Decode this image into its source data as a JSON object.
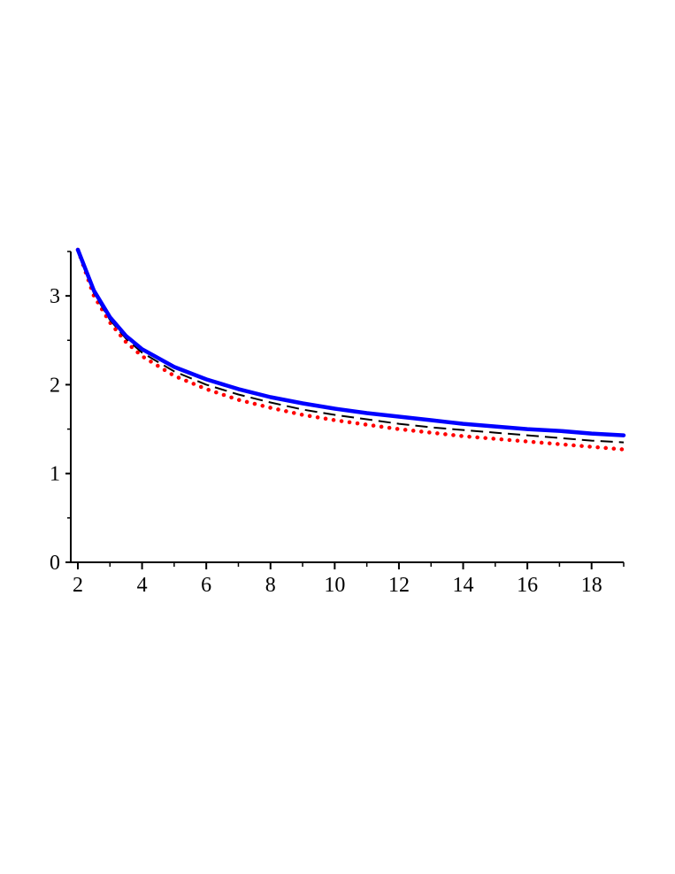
{
  "chart_data": {
    "type": "line",
    "title": "",
    "xlabel": "",
    "ylabel": "",
    "xlim": [
      2,
      19
    ],
    "ylim": [
      0,
      3.5
    ],
    "x_ticks": [
      2,
      4,
      6,
      8,
      10,
      12,
      14,
      16,
      18
    ],
    "x_tick_labels": [
      "2",
      "4",
      "6",
      "8",
      "10",
      "12",
      "14",
      "16",
      "18"
    ],
    "y_ticks": [
      0,
      1,
      2,
      3
    ],
    "y_tick_labels": [
      "0",
      "1",
      "2",
      "3"
    ],
    "grid": false,
    "legend": "none",
    "series": [
      {
        "style": "solid",
        "color": "#0000ff",
        "x": [
          2,
          2.5,
          3,
          3.5,
          4,
          5,
          6,
          7,
          8,
          9,
          10,
          11,
          12,
          13,
          14,
          15,
          16,
          17,
          18,
          19
        ],
        "y": [
          3.52,
          3.06,
          2.76,
          2.55,
          2.4,
          2.2,
          2.06,
          1.95,
          1.86,
          1.79,
          1.73,
          1.68,
          1.64,
          1.6,
          1.56,
          1.53,
          1.5,
          1.48,
          1.45,
          1.43
        ]
      },
      {
        "style": "dashed",
        "color": "#000000",
        "x": [
          2,
          2.5,
          3,
          3.5,
          4,
          5,
          6,
          7,
          8,
          9,
          10,
          11,
          12,
          13,
          14,
          15,
          16,
          17,
          18,
          19
        ],
        "y": [
          3.52,
          3.03,
          2.73,
          2.52,
          2.36,
          2.15,
          2.0,
          1.89,
          1.8,
          1.72,
          1.66,
          1.61,
          1.56,
          1.52,
          1.49,
          1.46,
          1.43,
          1.4,
          1.37,
          1.35
        ]
      },
      {
        "style": "dotted",
        "color": "#ff0000",
        "x": [
          2,
          2.5,
          3,
          3.5,
          4,
          5,
          6,
          7,
          8,
          9,
          10,
          11,
          12,
          13,
          14,
          15,
          16,
          17,
          18,
          19
        ],
        "y": [
          3.52,
          3.0,
          2.7,
          2.48,
          2.32,
          2.1,
          1.95,
          1.83,
          1.74,
          1.66,
          1.6,
          1.55,
          1.5,
          1.46,
          1.42,
          1.39,
          1.36,
          1.33,
          1.3,
          1.27
        ]
      }
    ]
  }
}
